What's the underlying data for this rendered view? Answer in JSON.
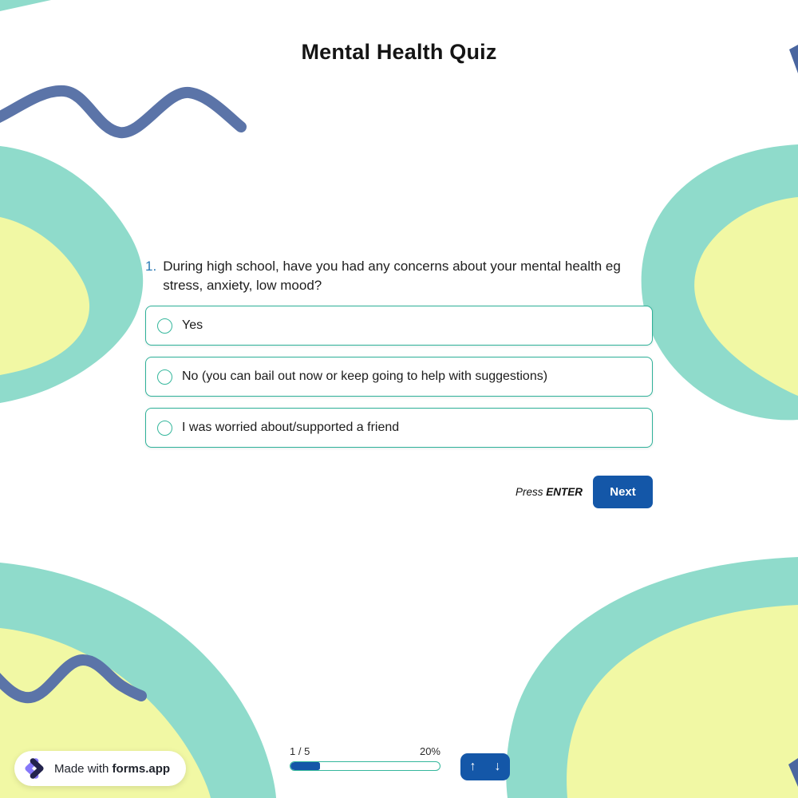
{
  "page": {
    "title": "Mental Health Quiz"
  },
  "question": {
    "number": "1.",
    "text": "During high school, have you had any concerns about your mental health eg stress, anxiety, low mood?",
    "options": [
      {
        "label": "Yes"
      },
      {
        "label": "No (you can bail out now or keep going to help with suggestions)"
      },
      {
        "label": "I was worried about/supported a friend"
      }
    ]
  },
  "actions": {
    "press_prefix": "Press",
    "press_key": "ENTER",
    "next_label": "Next"
  },
  "footer": {
    "badge_prefix": "Made with",
    "badge_brand": "forms.app",
    "progress_step": "1 / 5",
    "progress_percent": "20%",
    "progress_value": 20,
    "up_icon": "↑",
    "down_icon": "↓"
  },
  "colors": {
    "accent_blue": "#1457a8",
    "option_border_teal": "#2fb199",
    "blob_teal": "#8fdbcb",
    "blob_yellow": "#f1f8a4",
    "squiggle_blue": "#5b74a8",
    "question_number_blue": "#2a7ab5",
    "logo_purple": "#8678f9",
    "logo_navy": "#23234d"
  }
}
